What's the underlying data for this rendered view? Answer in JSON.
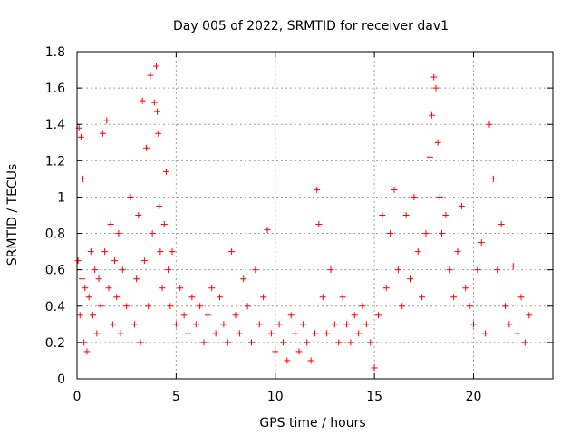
{
  "chart_data": {
    "type": "scatter",
    "title": "Day 005 of 2022, SRMTID for receiver dav1",
    "xlabel": "GPS time / hours",
    "ylabel": "SRMTID / TECUs",
    "xlim": [
      0,
      24
    ],
    "ylim": [
      0,
      1.8
    ],
    "xticks": [
      0,
      5,
      10,
      15,
      20
    ],
    "xtick_labels": [
      "0",
      "5",
      "10",
      "15",
      "20"
    ],
    "yticks": [
      0,
      0.2,
      0.4,
      0.6,
      0.8,
      1.0,
      1.2,
      1.4,
      1.6,
      1.8
    ],
    "ytick_labels": [
      "0",
      "0.2",
      "0.4",
      "0.6",
      "0.8",
      "1",
      "1.2",
      "1.4",
      "1.6",
      "1.8"
    ],
    "grid": true,
    "marker": "+",
    "color": "#ff0000",
    "series": [
      {
        "name": "SRMTID",
        "x": [
          0.05,
          0.1,
          0.15,
          0.2,
          0.25,
          0.3,
          0.35,
          0.4,
          0.5,
          0.6,
          0.7,
          0.8,
          0.9,
          1.0,
          1.1,
          1.2,
          1.3,
          1.4,
          1.5,
          1.6,
          1.7,
          1.8,
          1.9,
          2.0,
          2.1,
          2.2,
          2.3,
          2.5,
          2.7,
          2.9,
          3.0,
          3.1,
          3.2,
          3.3,
          3.4,
          3.5,
          3.6,
          3.7,
          3.8,
          3.9,
          4.0,
          4.05,
          4.1,
          4.15,
          4.2,
          4.3,
          4.4,
          4.5,
          4.6,
          4.7,
          4.8,
          5.0,
          5.2,
          5.4,
          5.6,
          5.8,
          6.0,
          6.2,
          6.4,
          6.6,
          6.8,
          7.0,
          7.2,
          7.4,
          7.6,
          7.8,
          8.0,
          8.2,
          8.4,
          8.6,
          8.8,
          9.0,
          9.2,
          9.4,
          9.6,
          9.8,
          10.0,
          10.2,
          10.4,
          10.6,
          10.8,
          11.0,
          11.2,
          11.4,
          11.6,
          11.8,
          12.0,
          12.1,
          12.2,
          12.4,
          12.6,
          12.8,
          13.0,
          13.2,
          13.4,
          13.6,
          13.8,
          14.0,
          14.2,
          14.4,
          14.6,
          14.8,
          15.0,
          15.2,
          15.4,
          15.6,
          15.8,
          16.0,
          16.2,
          16.4,
          16.6,
          16.8,
          17.0,
          17.2,
          17.4,
          17.6,
          17.8,
          17.9,
          18.0,
          18.1,
          18.2,
          18.3,
          18.4,
          18.6,
          18.8,
          19.0,
          19.2,
          19.4,
          19.6,
          19.8,
          20.0,
          20.2,
          20.4,
          20.6,
          20.8,
          21.0,
          21.2,
          21.4,
          21.6,
          21.8,
          22.0,
          22.2,
          22.4,
          22.6,
          22.8
        ],
        "y": [
          0.65,
          1.38,
          0.35,
          1.33,
          0.55,
          1.1,
          0.2,
          0.5,
          0.15,
          0.45,
          0.7,
          0.35,
          0.6,
          0.25,
          0.55,
          0.4,
          1.35,
          0.7,
          1.42,
          0.5,
          0.85,
          0.3,
          0.65,
          0.45,
          0.8,
          0.25,
          0.6,
          0.4,
          1.0,
          0.3,
          0.55,
          0.9,
          0.2,
          1.53,
          0.65,
          1.27,
          0.4,
          1.67,
          0.8,
          1.52,
          1.72,
          1.47,
          1.35,
          0.95,
          0.7,
          0.5,
          0.85,
          1.14,
          0.6,
          0.4,
          0.7,
          0.3,
          0.5,
          0.35,
          0.25,
          0.45,
          0.3,
          0.4,
          0.2,
          0.35,
          0.5,
          0.25,
          0.45,
          0.3,
          0.2,
          0.7,
          0.35,
          0.25,
          0.55,
          0.4,
          0.2,
          0.6,
          0.3,
          0.45,
          0.82,
          0.25,
          0.15,
          0.3,
          0.2,
          0.1,
          0.35,
          0.25,
          0.15,
          0.3,
          0.2,
          0.1,
          0.25,
          1.04,
          0.85,
          0.45,
          0.25,
          0.6,
          0.3,
          0.2,
          0.45,
          0.3,
          0.2,
          0.35,
          0.25,
          0.4,
          0.3,
          0.2,
          0.06,
          0.35,
          0.9,
          0.5,
          0.8,
          1.04,
          0.6,
          0.4,
          0.9,
          0.55,
          1.0,
          0.7,
          0.45,
          0.8,
          1.22,
          1.45,
          1.66,
          1.6,
          1.3,
          1.0,
          0.8,
          0.9,
          0.6,
          0.45,
          0.7,
          0.95,
          0.5,
          0.4,
          0.3,
          0.6,
          0.75,
          0.25,
          1.4,
          1.1,
          0.6,
          0.85,
          0.4,
          0.3,
          0.62,
          0.25,
          0.45,
          0.2,
          0.35
        ]
      }
    ]
  }
}
